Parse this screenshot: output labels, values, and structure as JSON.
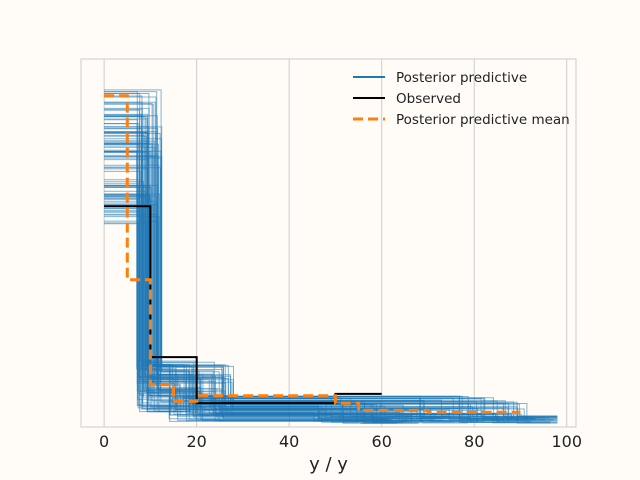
{
  "chart_data": {
    "type": "line",
    "title": "",
    "xlabel": "y / y",
    "ylabel": "",
    "xlim": [
      -5,
      102
    ],
    "ylim": [
      0,
      1
    ],
    "x_ticks": [
      0,
      20,
      40,
      60,
      80,
      100
    ],
    "x_tick_labels": [
      "0",
      "20",
      "40",
      "60",
      "80",
      "100"
    ],
    "y_ticks_shown": false,
    "grid": "vertical",
    "legend_position": "top-right",
    "style": "step",
    "series": [
      {
        "name": "Posterior predictive",
        "color": "#1f77b4",
        "samples_shown": 100,
        "steps_reference": [
          {
            "x_start": 0,
            "x_end": 10,
            "y": 0.6
          },
          {
            "x_start": 10,
            "x_end": 20,
            "y": 0.1
          },
          {
            "x_start": 20,
            "x_end": 50,
            "y": 0.045
          },
          {
            "x_start": 50,
            "x_end": 70,
            "y": 0.025
          },
          {
            "x_start": 70,
            "x_end": 90,
            "y": 0.01
          }
        ]
      },
      {
        "name": "Observed",
        "color": "#000000",
        "steps": [
          {
            "x_start": 0,
            "x_end": 10,
            "y": 0.6
          },
          {
            "x_start": 10,
            "x_end": 20,
            "y": 0.19
          },
          {
            "x_start": 20,
            "x_end": 50,
            "y": 0.065
          },
          {
            "x_start": 50,
            "x_end": 60,
            "y": 0.09
          }
        ]
      },
      {
        "name": "Posterior predictive mean",
        "color": "#ff7f0e",
        "linestyle": "dashed",
        "steps": [
          {
            "x_start": 0,
            "x_end": 5,
            "y": 0.9
          },
          {
            "x_start": 5,
            "x_end": 10,
            "y": 0.4
          },
          {
            "x_start": 10,
            "x_end": 15,
            "y": 0.115
          },
          {
            "x_start": 15,
            "x_end": 20,
            "y": 0.07
          },
          {
            "x_start": 20,
            "x_end": 50,
            "y": 0.085
          },
          {
            "x_start": 50,
            "x_end": 55,
            "y": 0.065
          },
          {
            "x_start": 55,
            "x_end": 70,
            "y": 0.045
          },
          {
            "x_start": 70,
            "x_end": 90,
            "y": 0.04
          }
        ]
      }
    ]
  }
}
